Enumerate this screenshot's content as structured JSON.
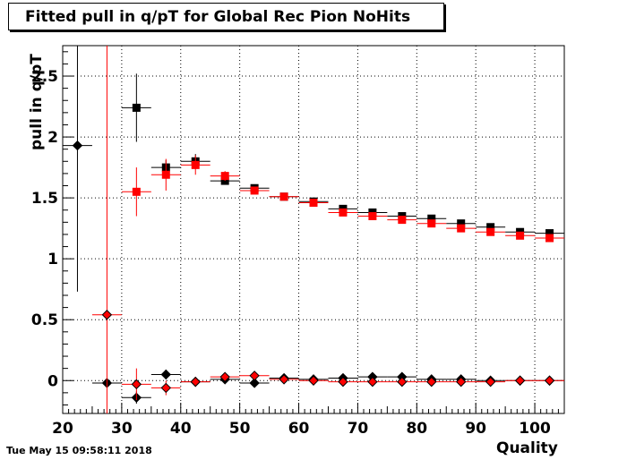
{
  "title": "Fitted pull in q/pT for Global Rec Pion NoHits",
  "timestamp": "Tue May 15 09:58:11 2018",
  "chart_data": {
    "type": "scatter",
    "title": "Fitted pull in q/pT for Global Rec Pion NoHits",
    "xlabel": "Quality",
    "ylabel": "pull in q/pT",
    "xlim": [
      20,
      105
    ],
    "ylim": [
      -0.27,
      2.75
    ],
    "xticks": [
      20,
      30,
      40,
      50,
      60,
      70,
      80,
      90,
      100
    ],
    "yticks": [
      0,
      0.5,
      1,
      1.5,
      2,
      2.5
    ],
    "xtick_labels": [
      "20",
      "30",
      "40",
      "50",
      "60",
      "70",
      "80",
      "90",
      "100"
    ],
    "ytick_labels": [
      "0",
      "0.5",
      "1",
      "1.5",
      "2",
      "2.5"
    ],
    "grid": true,
    "bin_width": 5,
    "series": [
      {
        "color": "#000000",
        "marker": "square",
        "points": [
          {
            "x": 32.5,
            "y": 2.24,
            "err": 0.28
          },
          {
            "x": 37.5,
            "y": 1.75,
            "err": 0.06
          },
          {
            "x": 42.5,
            "y": 1.8,
            "err": 0.06
          },
          {
            "x": 47.5,
            "y": 1.64,
            "err": 0.03
          },
          {
            "x": 52.5,
            "y": 1.58,
            "err": 0.02
          },
          {
            "x": 57.5,
            "y": 1.51,
            "err": 0.02
          },
          {
            "x": 62.5,
            "y": 1.47,
            "err": 0.02
          },
          {
            "x": 67.5,
            "y": 1.41,
            "err": 0.02
          },
          {
            "x": 72.5,
            "y": 1.38,
            "err": 0.02
          },
          {
            "x": 77.5,
            "y": 1.35,
            "err": 0.02
          },
          {
            "x": 82.5,
            "y": 1.33,
            "err": 0.02
          },
          {
            "x": 87.5,
            "y": 1.29,
            "err": 0.02
          },
          {
            "x": 92.5,
            "y": 1.26,
            "err": 0.02
          },
          {
            "x": 97.5,
            "y": 1.22,
            "err": 0.02
          },
          {
            "x": 102.5,
            "y": 1.21,
            "err": 0.02
          }
        ]
      },
      {
        "color": "#ff0000",
        "marker": "square",
        "points": [
          {
            "x": 32.5,
            "y": 1.55,
            "err": 0.2
          },
          {
            "x": 37.5,
            "y": 1.69,
            "err": 0.13
          },
          {
            "x": 42.5,
            "y": 1.77,
            "err": 0.08
          },
          {
            "x": 47.5,
            "y": 1.68,
            "err": 0.04
          },
          {
            "x": 52.5,
            "y": 1.56,
            "err": 0.02
          },
          {
            "x": 57.5,
            "y": 1.51,
            "err": 0.02
          },
          {
            "x": 62.5,
            "y": 1.46,
            "err": 0.02
          },
          {
            "x": 67.5,
            "y": 1.38,
            "err": 0.02
          },
          {
            "x": 72.5,
            "y": 1.35,
            "err": 0.02
          },
          {
            "x": 77.5,
            "y": 1.32,
            "err": 0.02
          },
          {
            "x": 82.5,
            "y": 1.29,
            "err": 0.02
          },
          {
            "x": 87.5,
            "y": 1.25,
            "err": 0.02
          },
          {
            "x": 92.5,
            "y": 1.22,
            "err": 0.02
          },
          {
            "x": 97.5,
            "y": 1.19,
            "err": 0.02
          },
          {
            "x": 102.5,
            "y": 1.17,
            "err": 0.02
          }
        ]
      },
      {
        "color": "#000000",
        "marker": "diamond",
        "points": [
          {
            "x": 22.5,
            "y": 1.93,
            "err": 1.2
          },
          {
            "x": 27.5,
            "y": -0.02,
            "err": 0.0
          },
          {
            "x": 32.5,
            "y": -0.14,
            "err": 0.05
          },
          {
            "x": 37.5,
            "y": 0.05,
            "err": 0.04
          },
          {
            "x": 42.5,
            "y": -0.01,
            "err": 0.02
          },
          {
            "x": 47.5,
            "y": 0.01,
            "err": 0.01
          },
          {
            "x": 52.5,
            "y": -0.02,
            "err": 0.01
          },
          {
            "x": 57.5,
            "y": 0.02,
            "err": 0.01
          },
          {
            "x": 62.5,
            "y": 0.01,
            "err": 0.01
          },
          {
            "x": 67.5,
            "y": 0.02,
            "err": 0.01
          },
          {
            "x": 72.5,
            "y": 0.03,
            "err": 0.01
          },
          {
            "x": 77.5,
            "y": 0.03,
            "err": 0.01
          },
          {
            "x": 82.5,
            "y": 0.01,
            "err": 0.01
          },
          {
            "x": 87.5,
            "y": 0.01,
            "err": 0.01
          },
          {
            "x": 92.5,
            "y": 0.0,
            "err": 0.01
          },
          {
            "x": 97.5,
            "y": 0.0,
            "err": 0.01
          },
          {
            "x": 102.5,
            "y": 0.0,
            "err": 0.01
          }
        ]
      },
      {
        "color": "#ff0000",
        "marker": "diamond",
        "points": [
          {
            "x": 27.5,
            "y": 0.54,
            "err": 2.5
          },
          {
            "x": 32.5,
            "y": -0.03,
            "err": 0.13
          },
          {
            "x": 37.5,
            "y": -0.06,
            "err": 0.06
          },
          {
            "x": 42.5,
            "y": -0.01,
            "err": 0.04
          },
          {
            "x": 47.5,
            "y": 0.03,
            "err": 0.02
          },
          {
            "x": 52.5,
            "y": 0.04,
            "err": 0.02
          },
          {
            "x": 57.5,
            "y": 0.01,
            "err": 0.01
          },
          {
            "x": 62.5,
            "y": 0.0,
            "err": 0.01
          },
          {
            "x": 67.5,
            "y": -0.01,
            "err": 0.01
          },
          {
            "x": 72.5,
            "y": -0.01,
            "err": 0.01
          },
          {
            "x": 77.5,
            "y": -0.01,
            "err": 0.01
          },
          {
            "x": 82.5,
            "y": -0.01,
            "err": 0.01
          },
          {
            "x": 87.5,
            "y": -0.01,
            "err": 0.01
          },
          {
            "x": 92.5,
            "y": -0.01,
            "err": 0.01
          },
          {
            "x": 97.5,
            "y": 0.0,
            "err": 0.01
          },
          {
            "x": 102.5,
            "y": 0.0,
            "err": 0.01
          }
        ]
      }
    ]
  }
}
